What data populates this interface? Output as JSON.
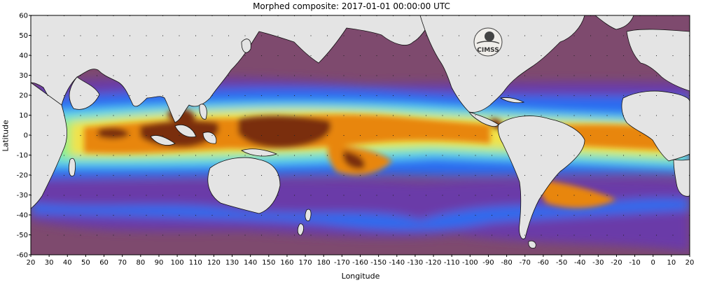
{
  "title": "Morphed composite: 2017-01-01 00:00:00 UTC",
  "y_axis": {
    "label": "Latitude",
    "ticks": [
      "60",
      "50",
      "40",
      "30",
      "20",
      "10",
      "0",
      "-10",
      "-20",
      "-30",
      "-40",
      "-50",
      "-60"
    ]
  },
  "x_axis": {
    "label": "Longitude",
    "ticks": [
      "20",
      "30",
      "40",
      "50",
      "60",
      "70",
      "80",
      "90",
      "100",
      "110",
      "120",
      "130",
      "140",
      "150",
      "160",
      "170",
      "180",
      "-170",
      "-160",
      "-150",
      "-140",
      "-130",
      "-120",
      "-110",
      "-100",
      "-90",
      "-80",
      "-70",
      "-60",
      "-50",
      "-40",
      "-30",
      "-20",
      "-10",
      "0",
      "10",
      "20"
    ]
  },
  "logo": {
    "text": "CIMSS",
    "icon": "cimss-logo-icon"
  },
  "colors": {
    "land": "#e4e4e4",
    "dry": "#7e4a6e",
    "purple": "#6a3aa8",
    "blue": "#2a6cf0",
    "cyan": "#5cd6f0",
    "green": "#8ef08a",
    "yellow": "#f2e24a",
    "orange": "#e8860e",
    "brown": "#7a2e10"
  }
}
